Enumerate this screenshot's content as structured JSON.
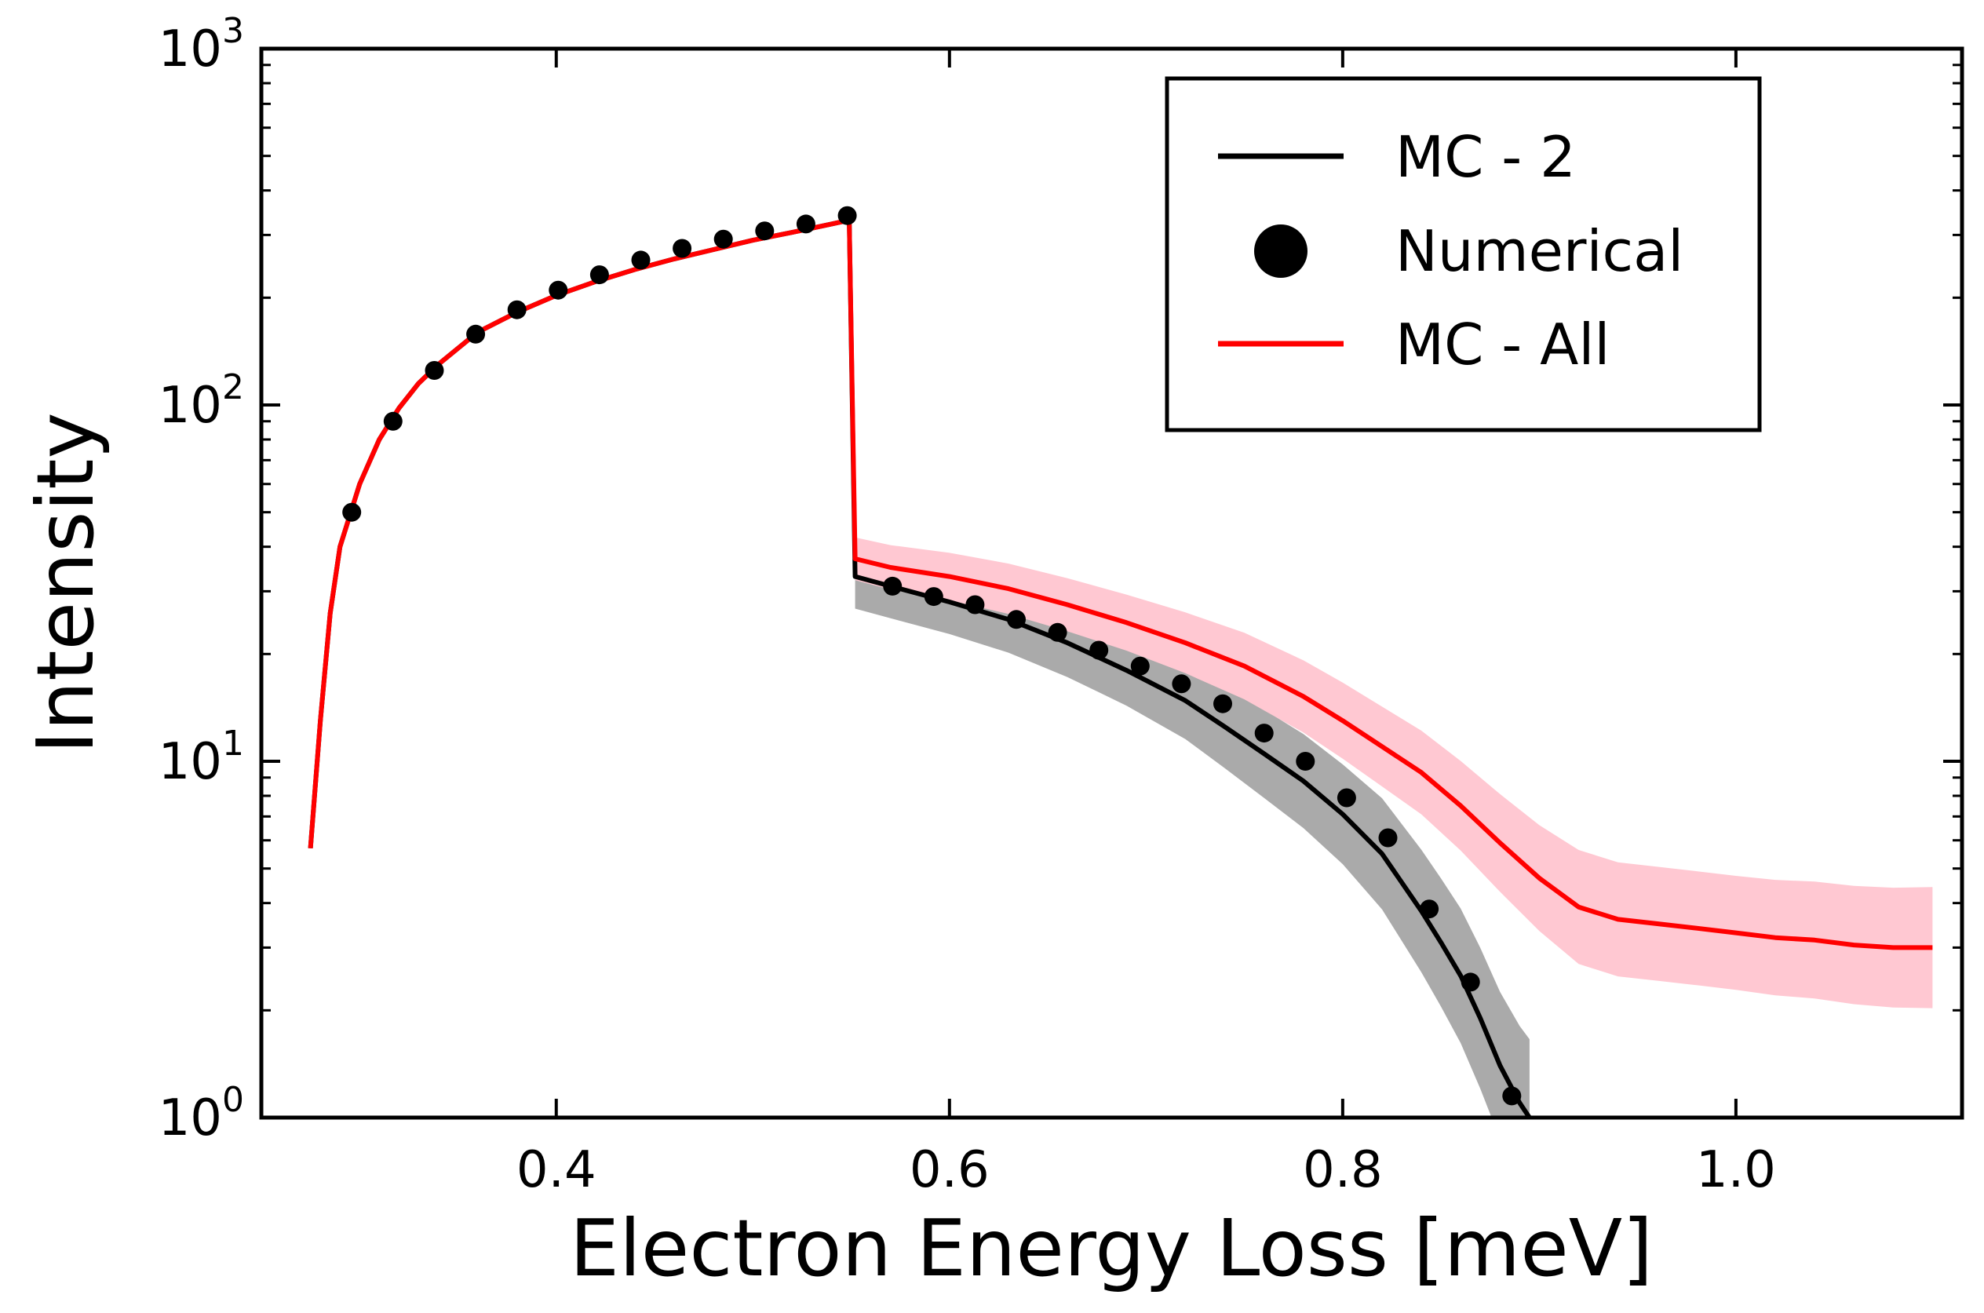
{
  "chart_data": {
    "type": "line",
    "xlabel": "Electron Energy Loss [meV]",
    "ylabel": "Intensity",
    "xlim": [
      0.25,
      1.115
    ],
    "ylim": [
      1,
      1000
    ],
    "yscale": "log",
    "grid": false,
    "legend_position": "top-right",
    "x_ticks": [
      {
        "value": 0.4,
        "label": "0.4"
      },
      {
        "value": 0.6,
        "label": "0.6"
      },
      {
        "value": 0.8,
        "label": "0.8"
      },
      {
        "value": 1.0,
        "label": "1.0"
      }
    ],
    "y_ticks": [
      {
        "value": 1,
        "base": "10",
        "exp": "0"
      },
      {
        "value": 10,
        "base": "10",
        "exp": "1"
      },
      {
        "value": 100,
        "base": "10",
        "exp": "2"
      },
      {
        "value": 1000,
        "base": "10",
        "exp": "3"
      }
    ],
    "series": [
      {
        "name": "MC - 2",
        "style": "line",
        "color": "#000000",
        "band_color": "#aaaaaa",
        "points": [
          [
            0.275,
            5.7
          ],
          [
            0.28,
            13
          ],
          [
            0.285,
            26
          ],
          [
            0.29,
            40
          ],
          [
            0.3,
            60
          ],
          [
            0.31,
            80
          ],
          [
            0.32,
            98
          ],
          [
            0.33,
            115
          ],
          [
            0.34,
            130
          ],
          [
            0.36,
            160
          ],
          [
            0.38,
            182
          ],
          [
            0.4,
            203
          ],
          [
            0.42,
            222
          ],
          [
            0.44,
            240
          ],
          [
            0.46,
            257
          ],
          [
            0.48,
            273
          ],
          [
            0.5,
            290
          ],
          [
            0.52,
            305
          ],
          [
            0.54,
            322
          ],
          [
            0.549,
            330
          ],
          [
            0.552,
            33
          ],
          [
            0.57,
            31
          ],
          [
            0.6,
            28
          ],
          [
            0.63,
            25
          ],
          [
            0.66,
            21.5
          ],
          [
            0.69,
            18
          ],
          [
            0.72,
            14.8
          ],
          [
            0.74,
            12.5
          ],
          [
            0.76,
            10.5
          ],
          [
            0.78,
            8.8
          ],
          [
            0.8,
            7.1
          ],
          [
            0.82,
            5.5
          ],
          [
            0.84,
            3.8
          ],
          [
            0.85,
            3.1
          ],
          [
            0.86,
            2.5
          ],
          [
            0.87,
            1.9
          ],
          [
            0.88,
            1.4
          ],
          [
            0.89,
            1.1
          ],
          [
            0.895,
            1.0
          ]
        ],
        "band": [
          [
            0.552,
            0.09
          ],
          [
            0.6,
            0.09
          ],
          [
            0.7,
            0.1
          ],
          [
            0.8,
            0.14
          ],
          [
            0.85,
            0.18
          ],
          [
            0.895,
            0.22
          ]
        ]
      },
      {
        "name": "Numerical",
        "style": "markers",
        "color": "#000000",
        "points": [
          [
            0.296,
            50
          ],
          [
            0.317,
            90
          ],
          [
            0.338,
            125
          ],
          [
            0.359,
            158
          ],
          [
            0.38,
            185
          ],
          [
            0.401,
            210
          ],
          [
            0.422,
            232
          ],
          [
            0.443,
            255
          ],
          [
            0.464,
            275
          ],
          [
            0.485,
            292
          ],
          [
            0.506,
            308
          ],
          [
            0.527,
            322
          ],
          [
            0.548,
            340
          ],
          [
            0.571,
            31
          ],
          [
            0.592,
            29
          ],
          [
            0.613,
            27.5
          ],
          [
            0.634,
            25
          ],
          [
            0.655,
            23
          ],
          [
            0.676,
            20.5
          ],
          [
            0.697,
            18.5
          ],
          [
            0.718,
            16.5
          ],
          [
            0.739,
            14.5
          ],
          [
            0.76,
            12
          ],
          [
            0.781,
            10
          ],
          [
            0.802,
            7.9
          ],
          [
            0.823,
            6.1
          ],
          [
            0.844,
            3.85
          ],
          [
            0.865,
            2.4
          ],
          [
            0.886,
            1.15
          ]
        ]
      },
      {
        "name": "MC - All",
        "style": "line",
        "color": "#ff0000",
        "band_color": "#ffc8d2",
        "points": [
          [
            0.275,
            5.7
          ],
          [
            0.28,
            13
          ],
          [
            0.285,
            26
          ],
          [
            0.29,
            40
          ],
          [
            0.3,
            60
          ],
          [
            0.31,
            80
          ],
          [
            0.32,
            98
          ],
          [
            0.33,
            115
          ],
          [
            0.34,
            130
          ],
          [
            0.36,
            160
          ],
          [
            0.38,
            182
          ],
          [
            0.4,
            203
          ],
          [
            0.42,
            222
          ],
          [
            0.44,
            240
          ],
          [
            0.46,
            257
          ],
          [
            0.48,
            273
          ],
          [
            0.5,
            290
          ],
          [
            0.52,
            305
          ],
          [
            0.54,
            322
          ],
          [
            0.549,
            330
          ],
          [
            0.552,
            37
          ],
          [
            0.57,
            35
          ],
          [
            0.6,
            33
          ],
          [
            0.63,
            30.5
          ],
          [
            0.66,
            27.5
          ],
          [
            0.69,
            24.5
          ],
          [
            0.72,
            21.5
          ],
          [
            0.75,
            18.5
          ],
          [
            0.78,
            15.2
          ],
          [
            0.8,
            13
          ],
          [
            0.82,
            11
          ],
          [
            0.84,
            9.3
          ],
          [
            0.86,
            7.5
          ],
          [
            0.88,
            5.9
          ],
          [
            0.9,
            4.7
          ],
          [
            0.92,
            3.9
          ],
          [
            0.94,
            3.6
          ],
          [
            0.96,
            3.5
          ],
          [
            0.98,
            3.4
          ],
          [
            1.0,
            3.3
          ],
          [
            1.02,
            3.2
          ],
          [
            1.04,
            3.15
          ],
          [
            1.06,
            3.05
          ],
          [
            1.08,
            3.0
          ],
          [
            1.1,
            3.0
          ]
        ],
        "band": [
          [
            0.552,
            0.06
          ],
          [
            0.7,
            0.08
          ],
          [
            0.85,
            0.12
          ],
          [
            0.92,
            0.16
          ],
          [
            1.0,
            0.16
          ],
          [
            1.1,
            0.17
          ]
        ]
      }
    ]
  }
}
